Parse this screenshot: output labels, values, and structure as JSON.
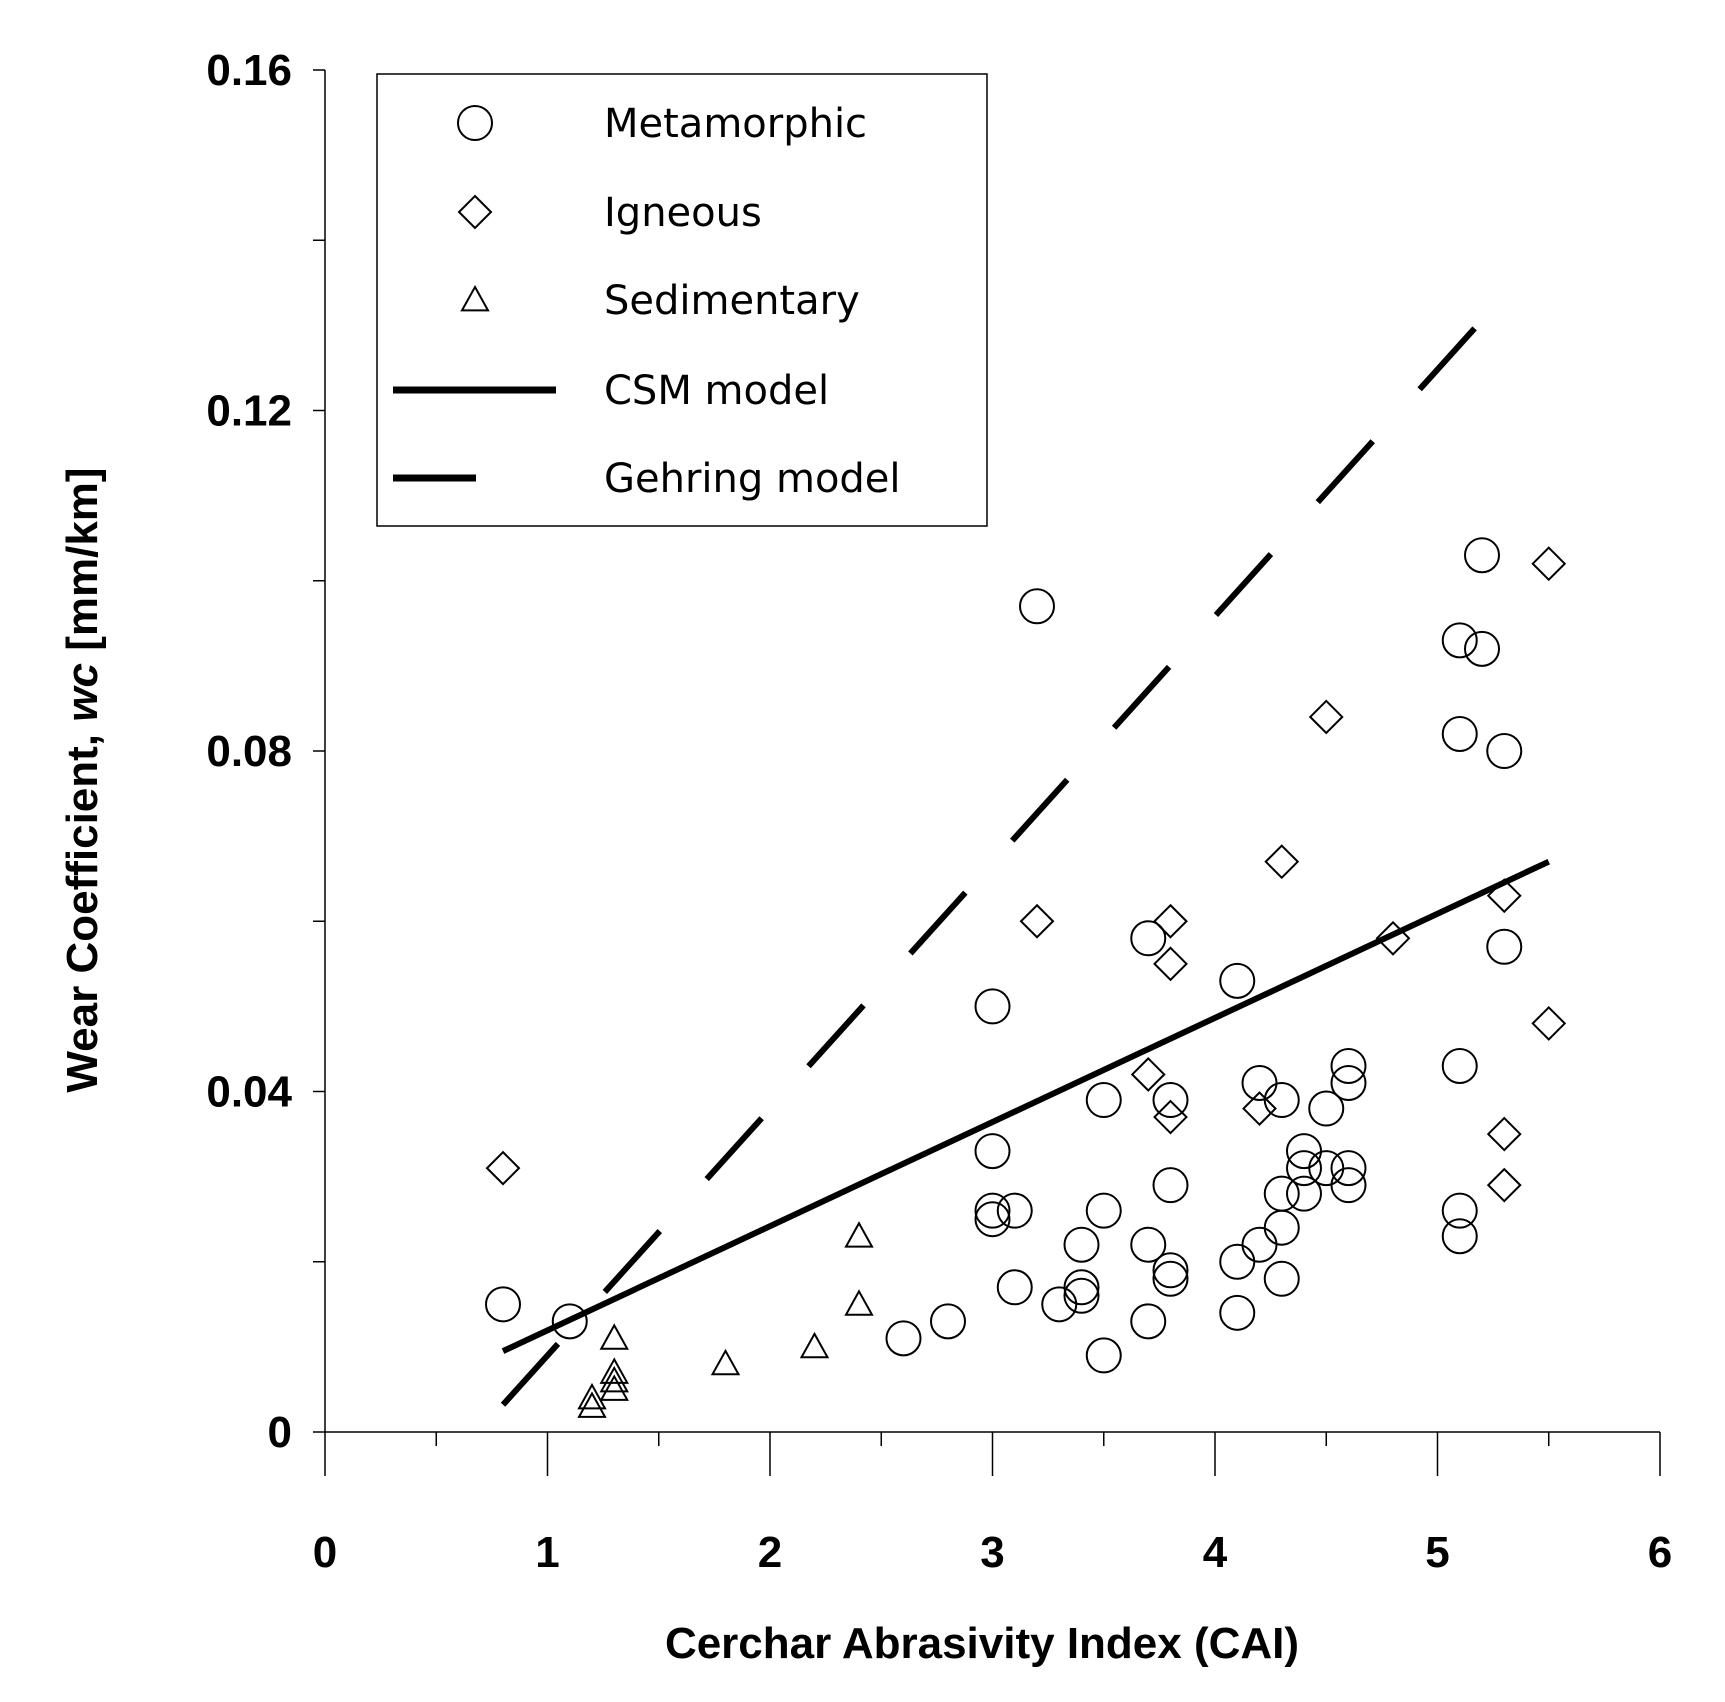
{
  "chart_data": {
    "type": "scatter",
    "title": "",
    "xlabel": "Cerchar Abrasivity Index (CAI)",
    "ylabel": {
      "prefix": "Wear Coefficient, ",
      "italic": "wc",
      "suffix": " [mm/km]"
    },
    "xlim": [
      0,
      6
    ],
    "ylim": [
      0,
      0.16
    ],
    "x_ticks": [
      "0",
      "1",
      "2",
      "3",
      "4",
      "5",
      "6"
    ],
    "y_ticks": [
      "0",
      "0.04",
      "0.08",
      "0.12",
      "0.16"
    ],
    "grid": false,
    "legend_position": "top-left",
    "series": [
      {
        "name": "Metamorphic",
        "marker": "circle",
        "points": [
          [
            0.8,
            0.015
          ],
          [
            1.1,
            0.013
          ],
          [
            2.6,
            0.011
          ],
          [
            2.8,
            0.013
          ],
          [
            3.0,
            0.05
          ],
          [
            3.0,
            0.033
          ],
          [
            3.0,
            0.026
          ],
          [
            3.0,
            0.025
          ],
          [
            3.1,
            0.026
          ],
          [
            3.1,
            0.017
          ],
          [
            3.2,
            0.097
          ],
          [
            3.3,
            0.015
          ],
          [
            3.4,
            0.022
          ],
          [
            3.4,
            0.017
          ],
          [
            3.4,
            0.016
          ],
          [
            3.5,
            0.039
          ],
          [
            3.5,
            0.026
          ],
          [
            3.5,
            0.009
          ],
          [
            3.7,
            0.058
          ],
          [
            3.7,
            0.022
          ],
          [
            3.7,
            0.013
          ],
          [
            3.8,
            0.039
          ],
          [
            3.8,
            0.029
          ],
          [
            3.8,
            0.019
          ],
          [
            3.8,
            0.018
          ],
          [
            4.1,
            0.053
          ],
          [
            4.1,
            0.02
          ],
          [
            4.1,
            0.014
          ],
          [
            4.2,
            0.041
          ],
          [
            4.2,
            0.022
          ],
          [
            4.3,
            0.039
          ],
          [
            4.3,
            0.028
          ],
          [
            4.3,
            0.024
          ],
          [
            4.3,
            0.018
          ],
          [
            4.4,
            0.033
          ],
          [
            4.4,
            0.031
          ],
          [
            4.4,
            0.028
          ],
          [
            4.5,
            0.038
          ],
          [
            4.5,
            0.031
          ],
          [
            4.6,
            0.043
          ],
          [
            4.6,
            0.041
          ],
          [
            4.6,
            0.031
          ],
          [
            4.6,
            0.029
          ],
          [
            5.1,
            0.093
          ],
          [
            5.1,
            0.082
          ],
          [
            5.1,
            0.043
          ],
          [
            5.1,
            0.026
          ],
          [
            5.1,
            0.023
          ],
          [
            5.2,
            0.103
          ],
          [
            5.2,
            0.092
          ],
          [
            5.3,
            0.08
          ],
          [
            5.3,
            0.057
          ]
        ]
      },
      {
        "name": "Igneous",
        "marker": "diamond",
        "points": [
          [
            0.8,
            0.031
          ],
          [
            3.2,
            0.06
          ],
          [
            3.7,
            0.042
          ],
          [
            3.8,
            0.06
          ],
          [
            3.8,
            0.055
          ],
          [
            3.8,
            0.037
          ],
          [
            4.2,
            0.038
          ],
          [
            4.3,
            0.067
          ],
          [
            4.5,
            0.084
          ],
          [
            4.8,
            0.058
          ],
          [
            5.3,
            0.063
          ],
          [
            5.3,
            0.035
          ],
          [
            5.3,
            0.029
          ],
          [
            5.5,
            0.102
          ],
          [
            5.5,
            0.048
          ]
        ]
      },
      {
        "name": "Sedimentary",
        "marker": "triangle",
        "points": [
          [
            1.2,
            0.004
          ],
          [
            1.2,
            0.003
          ],
          [
            1.3,
            0.011
          ],
          [
            1.3,
            0.007
          ],
          [
            1.3,
            0.006
          ],
          [
            1.3,
            0.005
          ],
          [
            1.8,
            0.008
          ],
          [
            2.2,
            0.01
          ],
          [
            2.4,
            0.023
          ],
          [
            2.4,
            0.015
          ]
        ]
      }
    ],
    "lines": [
      {
        "name": "CSM model",
        "style": "solid",
        "points": [
          [
            0.8,
            0.0095
          ],
          [
            5.5,
            0.067
          ]
        ]
      },
      {
        "name": "Gehring model",
        "style": "dashed",
        "points": [
          [
            0.8,
            0.0032
          ],
          [
            5.3,
            0.1335
          ]
        ]
      }
    ]
  }
}
